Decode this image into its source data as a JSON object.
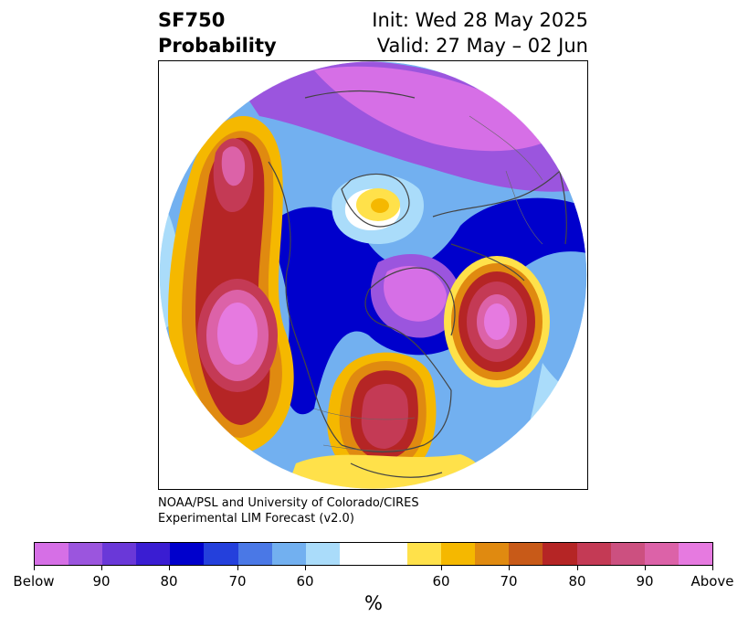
{
  "header": {
    "title_line1": "SF750",
    "title_line2": "Probability",
    "init_text": "Init: Wed 28 May 2025",
    "valid_text": "Valid: 27 May – 02 Jun"
  },
  "credit": {
    "line1": "NOAA/PSL and University of Colorado/CIRES",
    "line2": "Experimental LIM Forecast (v2.0)"
  },
  "colorbar": {
    "unit_label": "%",
    "tick_labels": [
      "Below",
      "90",
      "80",
      "70",
      "60",
      "60",
      "70",
      "80",
      "90",
      "Above"
    ],
    "colors": [
      "#d66fe6",
      "#9b55de",
      "#6a38d8",
      "#3a1dd2",
      "#0000cc",
      "#2440dc",
      "#4a78e6",
      "#72b0f0",
      "#aadcfa",
      "#ffffff",
      "#ffe14a",
      "#f5b800",
      "#e08a10",
      "#c85a18",
      "#b52525",
      "#c43a55",
      "#cc5080",
      "#dc62a8",
      "#e67ae0"
    ]
  },
  "palette": {
    "below_strong": "#d66fe6",
    "below_mid": "#0000cc",
    "below_weak": "#aadcfa",
    "neutral": "#ffffff",
    "above_weak": "#ffe14a",
    "above_mid": "#b52525",
    "above_strong": "#e67ae0",
    "coastline": "#444444"
  }
}
